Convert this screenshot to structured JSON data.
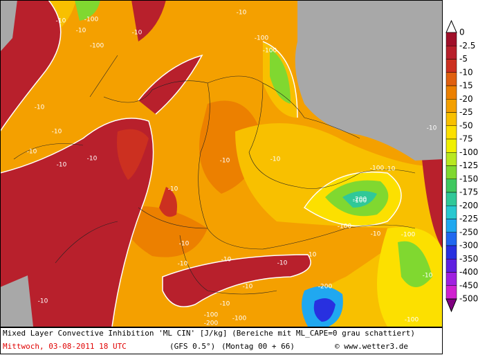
{
  "map": {
    "legend": {
      "unit_levels": [
        "0",
        "-2.5",
        "-5",
        "-10",
        "-15",
        "-20",
        "-25",
        "-50",
        "-75",
        "-100",
        "-125",
        "-150",
        "-175",
        "-200",
        "-225",
        "-250",
        "-300",
        "-350",
        "-400",
        "-450",
        "-500"
      ],
      "colors": [
        "#ffffff",
        "#a0102a",
        "#b8202c",
        "#cc3020",
        "#e06010",
        "#ec8000",
        "#f4a000",
        "#f8c000",
        "#fce000",
        "#f0f000",
        "#b8e820",
        "#80d830",
        "#40c860",
        "#30c898",
        "#28c8d0",
        "#20a8f0",
        "#2068f0",
        "#2830e0",
        "#6020e0",
        "#a020e0",
        "#d020d0",
        "#800080"
      ]
    },
    "contour_labels": [
      "-100",
      "-10",
      "-10",
      "-100",
      "-10",
      "-100",
      "-10",
      "-100",
      "-10",
      "-10",
      "-10",
      "-10",
      "-10",
      "-10",
      "-10",
      "-10",
      "-10",
      "-10",
      "-10",
      "-100",
      "-10",
      "-100",
      "-200",
      "-100",
      "-10",
      "-10",
      "-10",
      "-100",
      "-10",
      "-10",
      "-200",
      "-10",
      "-10",
      "-100",
      "-200",
      "-100",
      "-100",
      "-10"
    ],
    "caption": {
      "line1": "Mixed Layer Convective Inhibition 'ML CIN' [J/kg] (Bereiche mit ML_CAPE=0 grau schattiert)",
      "date": "Mittwoch, 03-08-2011  18 UTC",
      "model": "(GFS 0.5°)",
      "run": "(Montag 00 + 66)",
      "credit": "© www.wetter3.de"
    }
  }
}
